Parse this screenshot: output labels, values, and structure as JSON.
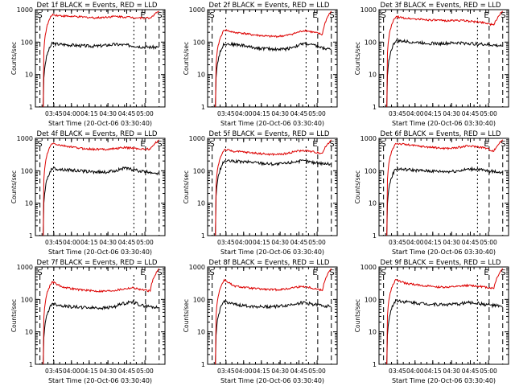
{
  "chart_data": [
    {
      "type": "line",
      "title": "Det 1f BLACK = Events, RED = LLD",
      "ylabel": "Counts/sec",
      "xlabel": "Start Time (20-Oct-06 03:30:40)",
      "x_ticks": [
        "03:45",
        "04:00",
        "04:15",
        "04:30",
        "04:45",
        "05:00"
      ],
      "y_ticks": [
        "1",
        "10",
        "100",
        "1000"
      ],
      "yscale": "log",
      "ylim": [
        1,
        1000
      ],
      "markers": [
        "S",
        "E",
        "S"
      ],
      "colors": {
        "events": "#000000",
        "lld": "#dd0000"
      },
      "series": [
        {
          "key": "events",
          "level": "~80",
          "profile": [
            1,
            90,
            85,
            82,
            78,
            76,
            75,
            80,
            85,
            82,
            78,
            72,
            70,
            70
          ]
        },
        {
          "key": "lld",
          "level": "~700",
          "profile": [
            1,
            700,
            650,
            620,
            600,
            580,
            560,
            590,
            620,
            600,
            580,
            560,
            550,
            900
          ]
        }
      ]
    },
    {
      "type": "line",
      "title": "Det 2f BLACK = Events, RED = LLD",
      "ylabel": "Counts/sec",
      "xlabel": "Start Time (20-Oct-06 03:30:40)",
      "x_ticks": [
        "03:45",
        "04:00",
        "04:15",
        "04:30",
        "04:45",
        "05:00"
      ],
      "y_ticks": [
        "1",
        "10",
        "100",
        "1000"
      ],
      "yscale": "log",
      "ylim": [
        1,
        1000
      ],
      "markers": [
        "S",
        "E",
        "S"
      ],
      "colors": {
        "events": "#000000",
        "lld": "#dd0000"
      },
      "series": [
        {
          "key": "events",
          "level": "~70",
          "profile": [
            1,
            90,
            85,
            80,
            70,
            65,
            62,
            60,
            62,
            75,
            90,
            80,
            65,
            60
          ]
        },
        {
          "key": "lld",
          "level": "~200",
          "profile": [
            1,
            240,
            200,
            190,
            170,
            160,
            150,
            150,
            160,
            190,
            230,
            200,
            170,
            900
          ]
        }
      ]
    },
    {
      "type": "line",
      "title": "Det 3f BLACK = Events, RED = LLD",
      "ylabel": "Counts/sec",
      "xlabel": "Start Time (20-Oct-06 03:30:40)",
      "x_ticks": [
        "03:45",
        "04:00",
        "04:15",
        "04:30",
        "04:45",
        "05:00"
      ],
      "y_ticks": [
        "1",
        "10",
        "100",
        "1000"
      ],
      "yscale": "log",
      "ylim": [
        1,
        1000
      ],
      "markers": [
        "S",
        "E",
        "S"
      ],
      "colors": {
        "events": "#000000",
        "lld": "#dd0000"
      },
      "series": [
        {
          "key": "events",
          "level": "~90",
          "profile": [
            1,
            110,
            105,
            100,
            95,
            92,
            90,
            92,
            95,
            92,
            88,
            85,
            80,
            75
          ]
        },
        {
          "key": "lld",
          "level": "~450",
          "profile": [
            1,
            600,
            550,
            520,
            500,
            480,
            460,
            460,
            470,
            450,
            420,
            400,
            330,
            900
          ]
        }
      ]
    },
    {
      "type": "line",
      "title": "Det 4f BLACK = Events, RED = LLD",
      "ylabel": "Counts/sec",
      "xlabel": "Start Time (20-Oct-06 03:30:40)",
      "x_ticks": [
        "03:45",
        "04:00",
        "04:15",
        "04:30",
        "04:45",
        "05:00"
      ],
      "y_ticks": [
        "1",
        "10",
        "100",
        "1000"
      ],
      "yscale": "log",
      "ylim": [
        1,
        1000
      ],
      "markers": [
        "S",
        "E",
        "S"
      ],
      "colors": {
        "events": "#000000",
        "lld": "#dd0000"
      },
      "series": [
        {
          "key": "events",
          "level": "~95",
          "profile": [
            1,
            120,
            110,
            105,
            100,
            95,
            92,
            90,
            100,
            120,
            110,
            95,
            90,
            85
          ]
        },
        {
          "key": "lld",
          "level": "~450",
          "profile": [
            1,
            700,
            600,
            550,
            500,
            470,
            460,
            460,
            480,
            520,
            500,
            470,
            460,
            900
          ]
        }
      ]
    },
    {
      "type": "line",
      "title": "Det 5f BLACK = Events, RED = LLD",
      "ylabel": "Counts/sec",
      "xlabel": "Start Time (20-Oct-06 03:30:40)",
      "x_ticks": [
        "03:45",
        "04:00",
        "04:15",
        "04:30",
        "04:45",
        "05:00"
      ],
      "y_ticks": [
        "1",
        "10",
        "100",
        "1000"
      ],
      "yscale": "log",
      "ylim": [
        1,
        1000
      ],
      "markers": [
        "S",
        "E",
        "S"
      ],
      "colors": {
        "events": "#000000",
        "lld": "#dd0000"
      },
      "series": [
        {
          "key": "events",
          "level": "~180",
          "profile": [
            1,
            200,
            195,
            190,
            185,
            175,
            165,
            160,
            170,
            195,
            200,
            180,
            170,
            160
          ]
        },
        {
          "key": "lld",
          "level": "~350",
          "profile": [
            1,
            450,
            400,
            380,
            360,
            340,
            320,
            320,
            340,
            400,
            420,
            380,
            350,
            900
          ]
        }
      ]
    },
    {
      "type": "line",
      "title": "Det 6f BLACK = Events, RED = LLD",
      "ylabel": "Counts/sec",
      "xlabel": "Start Time (20-Oct-06 03:30:40)",
      "x_ticks": [
        "03:45",
        "04:00",
        "04:15",
        "04:30",
        "04:45",
        "05:00"
      ],
      "y_ticks": [
        "1",
        "10",
        "100",
        "1000"
      ],
      "yscale": "log",
      "ylim": [
        1,
        1000
      ],
      "markers": [
        "S",
        "E",
        "S"
      ],
      "colors": {
        "events": "#000000",
        "lld": "#dd0000"
      },
      "series": [
        {
          "key": "events",
          "level": "~100",
          "profile": [
            1,
            115,
            110,
            105,
            100,
            98,
            95,
            95,
            100,
            110,
            115,
            100,
            95,
            90
          ]
        },
        {
          "key": "lld",
          "level": "~500",
          "profile": [
            1,
            700,
            650,
            600,
            560,
            530,
            500,
            490,
            520,
            580,
            560,
            510,
            400,
            900
          ]
        }
      ]
    },
    {
      "type": "line",
      "title": "Det 7f BLACK = Events, RED = LLD",
      "ylabel": "Counts/sec",
      "xlabel": "Start Time (20-Oct-06 03:30:40)",
      "x_ticks": [
        "03:45",
        "04:00",
        "04:15",
        "04:30",
        "04:45",
        "05:00"
      ],
      "y_ticks": [
        "1",
        "10",
        "100",
        "1000"
      ],
      "yscale": "log",
      "ylim": [
        1,
        1000
      ],
      "markers": [
        "S",
        "E",
        "S"
      ],
      "colors": {
        "events": "#000000",
        "lld": "#dd0000"
      },
      "series": [
        {
          "key": "events",
          "level": "~60",
          "profile": [
            1,
            75,
            65,
            60,
            58,
            56,
            55,
            55,
            60,
            75,
            85,
            65,
            60,
            55
          ]
        },
        {
          "key": "lld",
          "level": "~200",
          "profile": [
            1,
            350,
            250,
            220,
            200,
            190,
            180,
            180,
            190,
            210,
            230,
            200,
            180,
            900
          ]
        }
      ]
    },
    {
      "type": "line",
      "title": "Det 8f BLACK = Events, RED = LLD",
      "ylabel": "Counts/sec",
      "xlabel": "Start Time (20-Oct-06 03:30:40)",
      "x_ticks": [
        "03:45",
        "04:00",
        "04:15",
        "04:30",
        "04:45",
        "05:00"
      ],
      "y_ticks": [
        "1",
        "10",
        "100",
        "1000"
      ],
      "yscale": "log",
      "ylim": [
        1,
        1000
      ],
      "markers": [
        "S",
        "E",
        "S"
      ],
      "colors": {
        "events": "#000000",
        "lld": "#dd0000"
      },
      "series": [
        {
          "key": "events",
          "level": "~65",
          "profile": [
            1,
            90,
            70,
            65,
            62,
            60,
            60,
            62,
            65,
            75,
            80,
            70,
            65,
            60
          ]
        },
        {
          "key": "lld",
          "level": "~220",
          "profile": [
            1,
            400,
            260,
            240,
            220,
            210,
            200,
            200,
            210,
            240,
            250,
            220,
            190,
            900
          ]
        }
      ]
    },
    {
      "type": "line",
      "title": "Det 9f BLACK = Events, RED = LLD",
      "ylabel": "Counts/sec",
      "xlabel": "Start Time (20-Oct-06 03:30:40)",
      "x_ticks": [
        "03:45",
        "04:00",
        "04:15",
        "04:30",
        "04:45",
        "05:00"
      ],
      "y_ticks": [
        "1",
        "10",
        "100",
        "1000"
      ],
      "yscale": "log",
      "ylim": [
        1,
        1000
      ],
      "markers": [
        "S",
        "E",
        "S"
      ],
      "colors": {
        "events": "#000000",
        "lld": "#dd0000"
      },
      "series": [
        {
          "key": "events",
          "level": "~70",
          "profile": [
            1,
            95,
            85,
            80,
            75,
            72,
            70,
            70,
            72,
            80,
            78,
            70,
            65,
            60
          ]
        },
        {
          "key": "lld",
          "level": "~250",
          "profile": [
            1,
            400,
            320,
            290,
            270,
            250,
            240,
            240,
            250,
            270,
            260,
            240,
            220,
            900
          ]
        }
      ]
    }
  ]
}
